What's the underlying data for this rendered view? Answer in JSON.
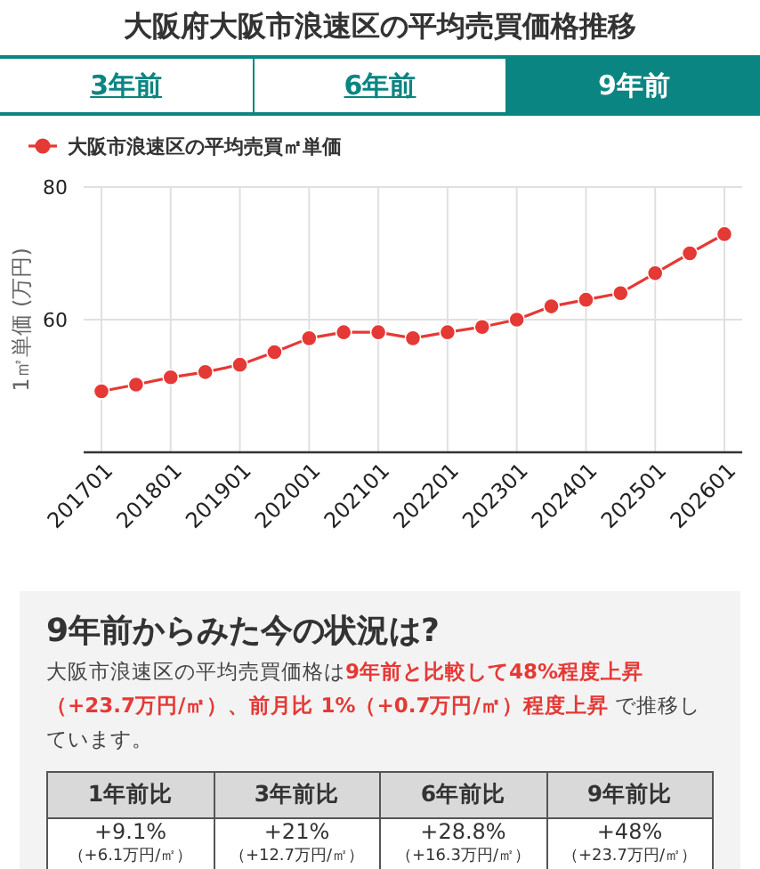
{
  "chart_data": [
    {
      "type": "line",
      "title": "大阪府大阪市浪速区の平均売買価格推移",
      "annotations": [
        "3年前",
        "6年前",
        "9年前"
      ],
      "ylabel": "1㎡単価 (万円)",
      "categories": [
        "201701",
        null,
        "201801",
        null,
        "201901",
        null,
        "202001",
        null,
        "202101",
        null,
        "202201",
        null,
        "202301",
        null,
        "202401",
        null,
        "202501",
        null,
        "202601"
      ],
      "series": [
        {
          "name": "大阪市浪速区の平均売買㎡単価",
          "color": "#e53935",
          "values": [
            49.2,
            50.2,
            51.3,
            52.1,
            53.2,
            55.1,
            57.2,
            58.1,
            58.1,
            57.2,
            58.1,
            58.9,
            60,
            62,
            63,
            64,
            67,
            70,
            72.9
          ]
        }
      ],
      "ylim": [
        40,
        80
      ],
      "yticks": [
        60,
        80
      ],
      "grid": true,
      "legend": "top left",
      "marker": "circle",
      "line_style": "solid"
    },
    {
      "type": "other",
      "title": "9年前からみた今の状況は?",
      "annotations": [
        "大阪市浪速区の平均売買価格は",
        "9年前と比較して48%程度上昇（+23.7万円/㎡）、前月比 1%（+0.7万円/㎡）程度上昇",
        " で推移しています。",
        "1年前比",
        "3年前比",
        "6年前比",
        "9年前比",
        "+9.1%",
        "+21%",
        "+28.8%",
        "+48%",
        "（+6.1万円/㎡）",
        "（+12.7万円/㎡）",
        "（+16.3万円/㎡）",
        "（+23.7万円/㎡）"
      ]
    }
  ]
}
